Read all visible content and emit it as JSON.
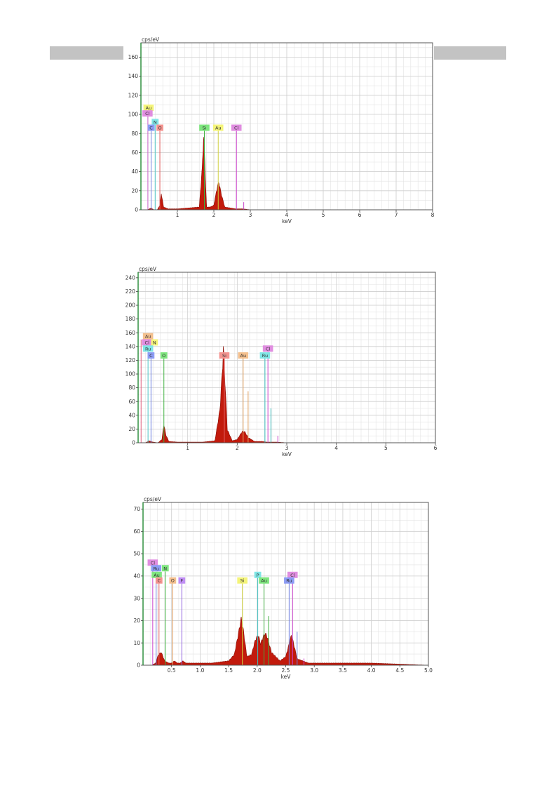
{
  "chart_data": [
    {
      "type": "line",
      "title": "",
      "ylabel": "cps/eV",
      "xlabel": "keV",
      "xlim": [
        0,
        8
      ],
      "ylim": [
        0,
        175
      ],
      "xticks": [
        1,
        2,
        3,
        4,
        5,
        6,
        7,
        8
      ],
      "yticks": [
        0,
        20,
        40,
        60,
        80,
        100,
        120,
        140,
        160
      ],
      "grid": true,
      "series": [
        {
          "x": [
            0.08,
            0.18,
            0.28,
            0.35,
            0.45,
            0.52,
            0.56,
            0.62,
            0.75,
            1.0,
            1.3,
            1.6,
            1.68,
            1.72,
            1.76,
            1.8,
            1.9,
            2.0,
            2.1,
            2.14,
            2.2,
            2.3,
            2.45,
            2.6,
            2.8,
            3.0,
            4.0,
            5.0,
            6.0,
            7.0,
            8.0
          ],
          "y": [
            0,
            0,
            2,
            0,
            0,
            5,
            18,
            3,
            1,
            1,
            2,
            3,
            45,
            83,
            45,
            3,
            3,
            5,
            26,
            30,
            18,
            3,
            2,
            1,
            1,
            0,
            0,
            0,
            0,
            0,
            0
          ]
        }
      ],
      "element_labels": [
        {
          "text": "Au",
          "energy": 0.21,
          "level": 107,
          "color": "#f4f47a"
        },
        {
          "text": "Cl",
          "energy": 0.18,
          "level": 101,
          "color": "#e08de0"
        },
        {
          "text": "N",
          "energy": 0.39,
          "level": 92,
          "color": "#80e6e6"
        },
        {
          "text": "C",
          "energy": 0.28,
          "level": 86,
          "color": "#8c9cf4"
        },
        {
          "text": "O",
          "energy": 0.52,
          "level": 86,
          "color": "#f49490"
        },
        {
          "text": "Si",
          "energy": 1.74,
          "level": 86,
          "color": "#7ee67e"
        },
        {
          "text": "Au",
          "energy": 2.12,
          "level": 86,
          "color": "#f4f47a"
        },
        {
          "text": "Cl",
          "energy": 2.62,
          "level": 86,
          "color": "#e08de0"
        }
      ],
      "element_lines": [
        {
          "energy": 0.19,
          "level": 100,
          "color": "#cc66cc"
        },
        {
          "energy": 0.28,
          "level": 86,
          "color": "#7080e0"
        },
        {
          "energy": 0.39,
          "level": 92,
          "color": "#50c8c8"
        },
        {
          "energy": 0.52,
          "level": 86,
          "color": "#e06060"
        },
        {
          "energy": 1.74,
          "level": 86,
          "color": "#40b040"
        },
        {
          "energy": 2.12,
          "level": 86,
          "color": "#d0d040"
        },
        {
          "energy": 2.62,
          "level": 86,
          "color": "#cc44cc"
        },
        {
          "energy": 2.82,
          "level": 8,
          "color": "#cc44cc"
        }
      ]
    },
    {
      "type": "line",
      "title": "",
      "ylabel": "cps/eV",
      "xlabel": "keV",
      "xlim": [
        0,
        6
      ],
      "ylim": [
        0,
        248
      ],
      "xticks": [
        1,
        2,
        3,
        4,
        5,
        6
      ],
      "yticks": [
        0,
        20,
        40,
        60,
        80,
        100,
        120,
        140,
        160,
        180,
        200,
        220,
        240
      ],
      "grid": true,
      "series": [
        {
          "x": [
            0.05,
            0.15,
            0.22,
            0.3,
            0.4,
            0.48,
            0.52,
            0.56,
            0.62,
            0.8,
            1.0,
            1.3,
            1.55,
            1.65,
            1.7,
            1.72,
            1.75,
            1.8,
            1.9,
            2.0,
            2.1,
            2.15,
            2.22,
            2.35,
            2.5,
            2.6,
            2.8,
            3.0,
            4.0,
            5.0,
            6.0
          ],
          "y": [
            0,
            0,
            3,
            1,
            0,
            5,
            28,
            12,
            2,
            1,
            1,
            1,
            3,
            50,
            110,
            145,
            100,
            20,
            3,
            5,
            17,
            17,
            8,
            2,
            2,
            1,
            1,
            0,
            0,
            0,
            0
          ]
        }
      ],
      "element_labels": [
        {
          "text": "Au",
          "energy": 0.2,
          "level": 155,
          "color": "#f4c08e"
        },
        {
          "text": "Cl",
          "energy": 0.18,
          "level": 146,
          "color": "#e08de0"
        },
        {
          "text": "N",
          "energy": 0.33,
          "level": 146,
          "color": "#f4f47a"
        },
        {
          "text": "Ru",
          "energy": 0.2,
          "level": 137,
          "color": "#80e6e6"
        },
        {
          "text": "C",
          "energy": 0.26,
          "level": 127,
          "color": "#8c9cf4"
        },
        {
          "text": "O",
          "energy": 0.52,
          "level": 127,
          "color": "#7ee67e"
        },
        {
          "text": "Si",
          "energy": 1.74,
          "level": 127,
          "color": "#f49490"
        },
        {
          "text": "Au",
          "energy": 2.12,
          "level": 127,
          "color": "#f4c08e"
        },
        {
          "text": "Cl",
          "energy": 2.62,
          "level": 137,
          "color": "#e08de0"
        },
        {
          "text": "Ru",
          "energy": 2.56,
          "level": 127,
          "color": "#80e6e6"
        }
      ],
      "element_lines": [
        {
          "energy": 0.06,
          "level": 150,
          "color": "#e06080"
        },
        {
          "energy": 0.2,
          "level": 137,
          "color": "#50c8c8"
        },
        {
          "energy": 0.26,
          "level": 127,
          "color": "#7080e0"
        },
        {
          "energy": 0.52,
          "level": 127,
          "color": "#40b040"
        },
        {
          "energy": 1.74,
          "level": 127,
          "color": "#e06060"
        },
        {
          "energy": 2.12,
          "level": 127,
          "color": "#e0a060"
        },
        {
          "energy": 2.22,
          "level": 75,
          "color": "#e0a060"
        },
        {
          "energy": 2.56,
          "level": 127,
          "color": "#40c0c0"
        },
        {
          "energy": 2.62,
          "level": 137,
          "color": "#cc44cc"
        },
        {
          "energy": 2.68,
          "level": 50,
          "color": "#40c0c0"
        },
        {
          "energy": 2.82,
          "level": 10,
          "color": "#cc44cc"
        }
      ]
    },
    {
      "type": "line",
      "title": "",
      "ylabel": "cps/eV",
      "xlabel": "keV",
      "xlim": [
        0,
        5
      ],
      "ylim": [
        0,
        73
      ],
      "xticks": [
        "0.5",
        "1.0",
        "1.5",
        "2.0",
        "2.5",
        "3.0",
        "3.5",
        "4.0",
        "4.5",
        "5.0"
      ],
      "yticks": [
        0,
        10,
        20,
        30,
        40,
        50,
        60,
        70
      ],
      "grid": true,
      "series": [
        {
          "x": [
            0.05,
            0.15,
            0.22,
            0.27,
            0.32,
            0.38,
            0.45,
            0.5,
            0.55,
            0.6,
            0.65,
            0.7,
            0.75,
            0.9,
            1.0,
            1.2,
            1.5,
            1.6,
            1.68,
            1.72,
            1.76,
            1.82,
            1.9,
            1.97,
            2.02,
            2.06,
            2.1,
            2.14,
            2.18,
            2.25,
            2.4,
            2.5,
            2.56,
            2.6,
            2.64,
            2.7,
            2.8,
            2.9,
            3.0,
            4.0,
            5.0
          ],
          "y": [
            0,
            0,
            1,
            5,
            6,
            2,
            1,
            1,
            2,
            1,
            1,
            2,
            1,
            1,
            1,
            1,
            2,
            5,
            16,
            22,
            16,
            4,
            5,
            12,
            14,
            10,
            13,
            15,
            13,
            6,
            2,
            4,
            10,
            14,
            10,
            3,
            2,
            1,
            1,
            1,
            0
          ]
        }
      ],
      "element_labels": [
        {
          "text": "Cl",
          "energy": 0.17,
          "level": 46,
          "color": "#e08de0"
        },
        {
          "text": "Ru",
          "energy": 0.23,
          "level": 43.5,
          "color": "#8c9cf4"
        },
        {
          "text": "N",
          "energy": 0.39,
          "level": 43.5,
          "color": "#7ee67e"
        },
        {
          "text": "Au",
          "energy": 0.24,
          "level": 40.5,
          "color": "#7ee67e"
        },
        {
          "text": "C",
          "energy": 0.28,
          "level": 38,
          "color": "#f49490"
        },
        {
          "text": "O",
          "energy": 0.52,
          "level": 38,
          "color": "#f4c08e"
        },
        {
          "text": "F",
          "energy": 0.68,
          "level": 38,
          "color": "#c08ef4"
        },
        {
          "text": "Si",
          "energy": 1.74,
          "level": 38,
          "color": "#f4f47a"
        },
        {
          "text": "P",
          "energy": 2.01,
          "level": 40.5,
          "color": "#80e6e6"
        },
        {
          "text": "Au",
          "energy": 2.12,
          "level": 38,
          "color": "#7ee67e"
        },
        {
          "text": "Cl",
          "energy": 2.62,
          "level": 40.5,
          "color": "#e08de0"
        },
        {
          "text": "Ru",
          "energy": 2.56,
          "level": 38,
          "color": "#8c9cf4"
        }
      ],
      "element_lines": [
        {
          "energy": 0.17,
          "level": 44,
          "color": "#cc44cc"
        },
        {
          "energy": 0.23,
          "level": 42,
          "color": "#7080e0"
        },
        {
          "energy": 0.28,
          "level": 38,
          "color": "#e06060"
        },
        {
          "energy": 0.39,
          "level": 42,
          "color": "#40b040"
        },
        {
          "energy": 0.52,
          "level": 38,
          "color": "#e0a060"
        },
        {
          "energy": 0.68,
          "level": 38,
          "color": "#9060e0"
        },
        {
          "energy": 1.74,
          "level": 38,
          "color": "#d0d040"
        },
        {
          "energy": 2.01,
          "level": 40,
          "color": "#40c0c0"
        },
        {
          "energy": 2.12,
          "level": 38,
          "color": "#40b040"
        },
        {
          "energy": 2.2,
          "level": 22,
          "color": "#40b040"
        },
        {
          "energy": 2.56,
          "level": 38,
          "color": "#7080e0"
        },
        {
          "energy": 2.62,
          "level": 40,
          "color": "#cc44cc"
        },
        {
          "energy": 2.7,
          "level": 15,
          "color": "#7080e0"
        },
        {
          "energy": 2.82,
          "level": 3,
          "color": "#cc44cc"
        }
      ]
    }
  ]
}
